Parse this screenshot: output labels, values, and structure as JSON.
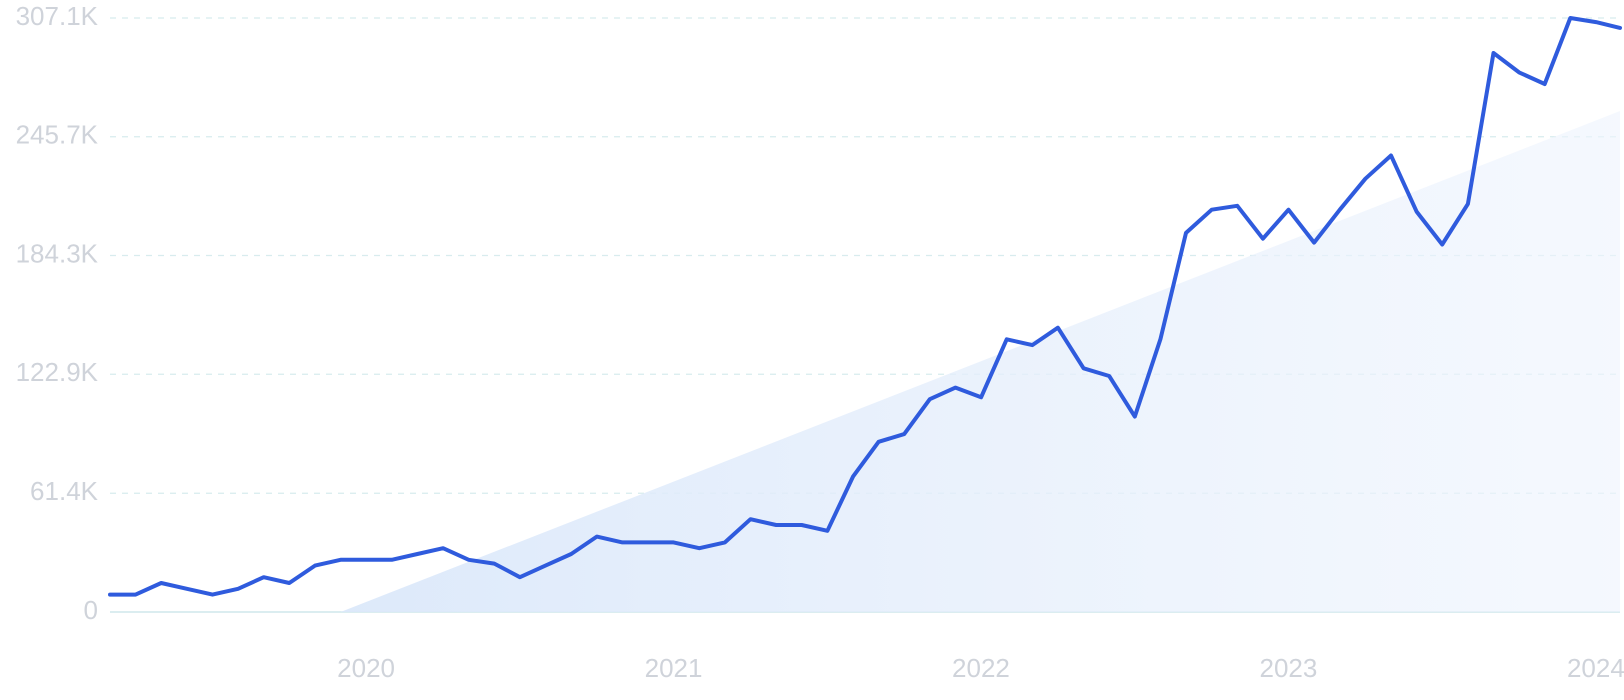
{
  "chart_data": {
    "type": "line",
    "title": "",
    "xlabel": "",
    "ylabel": "",
    "ylim": [
      0,
      307100
    ],
    "yticks": [
      {
        "value": 0,
        "label": "0"
      },
      {
        "value": 61400,
        "label": "61.4K"
      },
      {
        "value": 122900,
        "label": "122.9K"
      },
      {
        "value": 184300,
        "label": "184.3K"
      },
      {
        "value": 245700,
        "label": "245.7K"
      },
      {
        "value": 307100,
        "label": "307.1K"
      }
    ],
    "xticks": [
      {
        "value": "2020-01",
        "label": "2020"
      },
      {
        "value": "2021-01",
        "label": "2021"
      },
      {
        "value": "2022-01",
        "label": "2022"
      },
      {
        "value": "2023-01",
        "label": "2023"
      },
      {
        "value": "2024-01",
        "label": "2024"
      }
    ],
    "grid": true,
    "colors": {
      "line": "#2f5bdd",
      "trend_fill": "#dde9fa",
      "gridline": "#d8ecee",
      "tick_text": "#cfd3da"
    },
    "series": [
      {
        "x": [
          "2019-08",
          "2019-09",
          "2019-10",
          "2019-11",
          "2019-12",
          "2020-01",
          "2020-02",
          "2020-03",
          "2020-04",
          "2020-05",
          "2020-06",
          "2020-07",
          "2020-08",
          "2020-09",
          "2020-10",
          "2020-11",
          "2020-12",
          "2021-01",
          "2021-02",
          "2021-03",
          "2021-04",
          "2021-05",
          "2021-06",
          "2021-07",
          "2021-08",
          "2021-09",
          "2021-10",
          "2021-11",
          "2021-12",
          "2022-01",
          "2022-02",
          "2022-03",
          "2022-04",
          "2022-05",
          "2022-06",
          "2022-07",
          "2022-08",
          "2022-09",
          "2022-10",
          "2022-11",
          "2022-12",
          "2023-01",
          "2023-02",
          "2023-03",
          "2023-04",
          "2023-05",
          "2023-06",
          "2023-07",
          "2023-08",
          "2023-09",
          "2023-10",
          "2023-11",
          "2023-12",
          "2024-01",
          "2024-02",
          "2024-03",
          "2024-04",
          "2024-05",
          "2024-06",
          "2024-07"
        ],
        "values": [
          9000,
          9000,
          15000,
          12000,
          9000,
          12000,
          18000,
          15000,
          24000,
          27000,
          27000,
          27000,
          30000,
          33000,
          27000,
          25000,
          18000,
          24000,
          30000,
          39000,
          36000,
          36000,
          36000,
          33000,
          36000,
          48000,
          45000,
          45000,
          42000,
          70000,
          88000,
          92000,
          110000,
          116000,
          111000,
          141000,
          138000,
          147000,
          126000,
          122000,
          101000,
          141000,
          196000,
          208000,
          210000,
          193000,
          208000,
          191000,
          208000,
          224000,
          236000,
          207000,
          190000,
          211000,
          289000,
          279000,
          273000,
          307100,
          305000,
          302000
        ]
      }
    ],
    "trend": {
      "x": [
        "2020-05",
        "2024-07"
      ],
      "values": [
        0,
        259000
      ]
    }
  }
}
